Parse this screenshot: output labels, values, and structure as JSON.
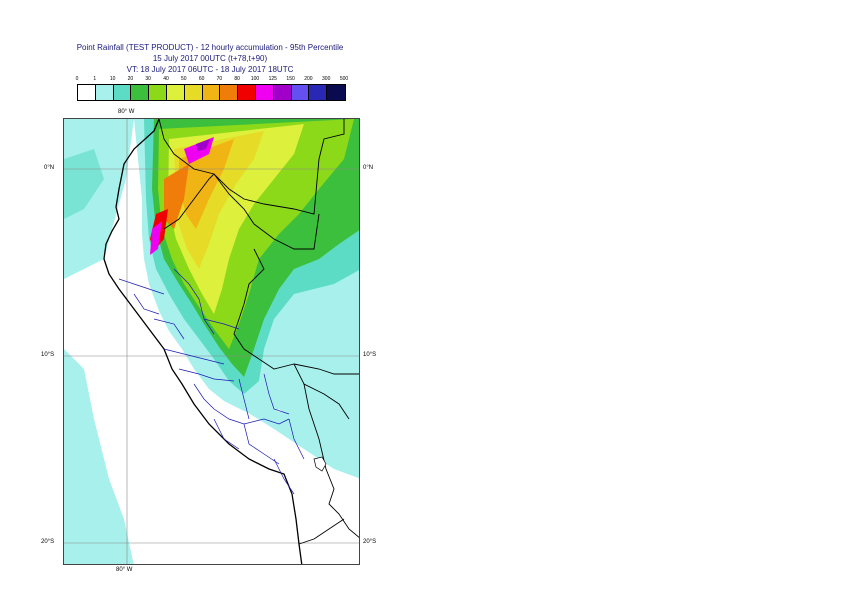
{
  "titles": {
    "line1": "Point Rainfall (TEST PRODUCT) - 12 hourly accumulation - 95th Percentile",
    "line2": "15 July 2017 00UTC (t+78,t+90)",
    "line3": "VT: 18 July 2017 06UTC - 18 July 2017 18UTC"
  },
  "legend": {
    "labels": [
      "0",
      "1",
      "10",
      "20",
      "30",
      "40",
      "50",
      "60",
      "70",
      "80",
      "100",
      "125",
      "150",
      "200",
      "300",
      "500"
    ],
    "colors": [
      "#ffffff",
      "#a8f0ec",
      "#5cdcc4",
      "#3cbf3c",
      "#8cd91a",
      "#dcf03c",
      "#e6dc28",
      "#f0b414",
      "#f07d0a",
      "#f00000",
      "#f000f0",
      "#a000c8",
      "#6450f0",
      "#2828b4",
      "#0a0a50"
    ]
  },
  "map": {
    "top_lon_label": "80° W",
    "bottom_lon_label": "80° W",
    "lat_labels_left": [
      "0°N",
      "10°S",
      "20°S"
    ],
    "lat_labels_right": [
      "0°N",
      "10°S",
      "20°S"
    ]
  }
}
